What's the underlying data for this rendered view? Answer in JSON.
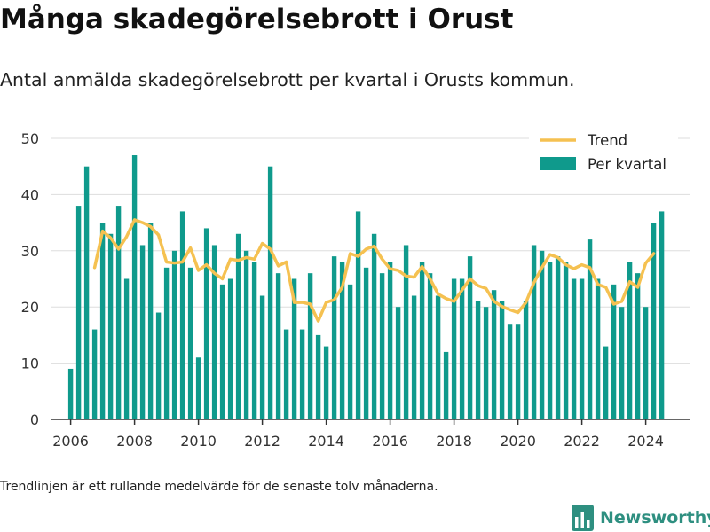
{
  "title": "Många skadegörelsebrott i Orust",
  "subtitle": "Antal anmälda skadegörelsebrott per kvartal i Orusts kommun.",
  "note": "Trendlinjen är ett rullande medelvärde för de senaste tolv månaderna.",
  "brand": {
    "name": "Newsworthy",
    "icon": "bar-chart-logo-icon"
  },
  "colors": {
    "bars": "#0f9a8c",
    "trend": "#f5c151",
    "grid": "#dddddd",
    "axis": "#333333",
    "brand": "#2e8f80"
  },
  "chart_data": {
    "type": "bar",
    "x_unit": "year",
    "ylim": [
      0,
      50
    ],
    "xlim": [
      2005.4,
      2025.4
    ],
    "yticks": [
      0,
      10,
      20,
      30,
      40,
      50
    ],
    "xticks": [
      2006,
      2008,
      2010,
      2012,
      2014,
      2016,
      2018,
      2020,
      2022,
      2024
    ],
    "legend": {
      "position": "top-right",
      "entries": [
        "Trend",
        "Per kvartal"
      ]
    },
    "series": [
      {
        "name": "Per kvartal",
        "type": "bar",
        "start": 2006.0,
        "step": 0.25,
        "values": [
          9,
          38,
          45,
          16,
          35,
          33,
          38,
          25,
          47,
          31,
          35,
          19,
          27,
          30,
          37,
          27,
          11,
          34,
          31,
          24,
          25,
          33,
          30,
          28,
          22,
          45,
          26,
          16,
          25,
          16,
          26,
          15,
          13,
          29,
          28,
          24,
          37,
          27,
          33,
          26,
          28,
          20,
          31,
          22,
          28,
          26,
          22,
          12,
          25,
          25,
          29,
          21,
          20,
          23,
          21,
          17,
          17,
          21,
          31,
          30,
          28,
          29,
          28,
          25,
          25,
          32,
          25,
          13,
          24,
          20,
          28,
          26,
          20,
          35,
          37
        ]
      },
      {
        "name": "Trend",
        "type": "line",
        "start": 2006.75,
        "step": 0.25,
        "values": [
          27,
          33.5,
          32.3,
          30.3,
          32.5,
          35.5,
          35,
          34.3,
          32.8,
          28,
          27.8,
          28,
          30.5,
          26.5,
          27.5,
          26,
          25,
          28.5,
          28.3,
          28.8,
          28.5,
          31.3,
          30.3,
          27.3,
          28,
          20.8,
          20.8,
          20.5,
          17.5,
          20.8,
          21.3,
          23.5,
          29.5,
          29,
          30.3,
          30.8,
          28.5,
          26.8,
          26.5,
          25.5,
          25.3,
          27.2,
          25,
          22.3,
          21.5,
          21,
          23,
          25,
          23.8,
          23.3,
          21,
          20.1,
          19.5,
          19,
          20.8,
          24.3,
          27,
          29.3,
          28.8,
          27.5,
          26.8,
          27.5,
          27,
          24,
          23.5,
          20.5,
          21,
          24.5,
          23.5,
          27.8,
          29.5
        ]
      }
    ]
  }
}
